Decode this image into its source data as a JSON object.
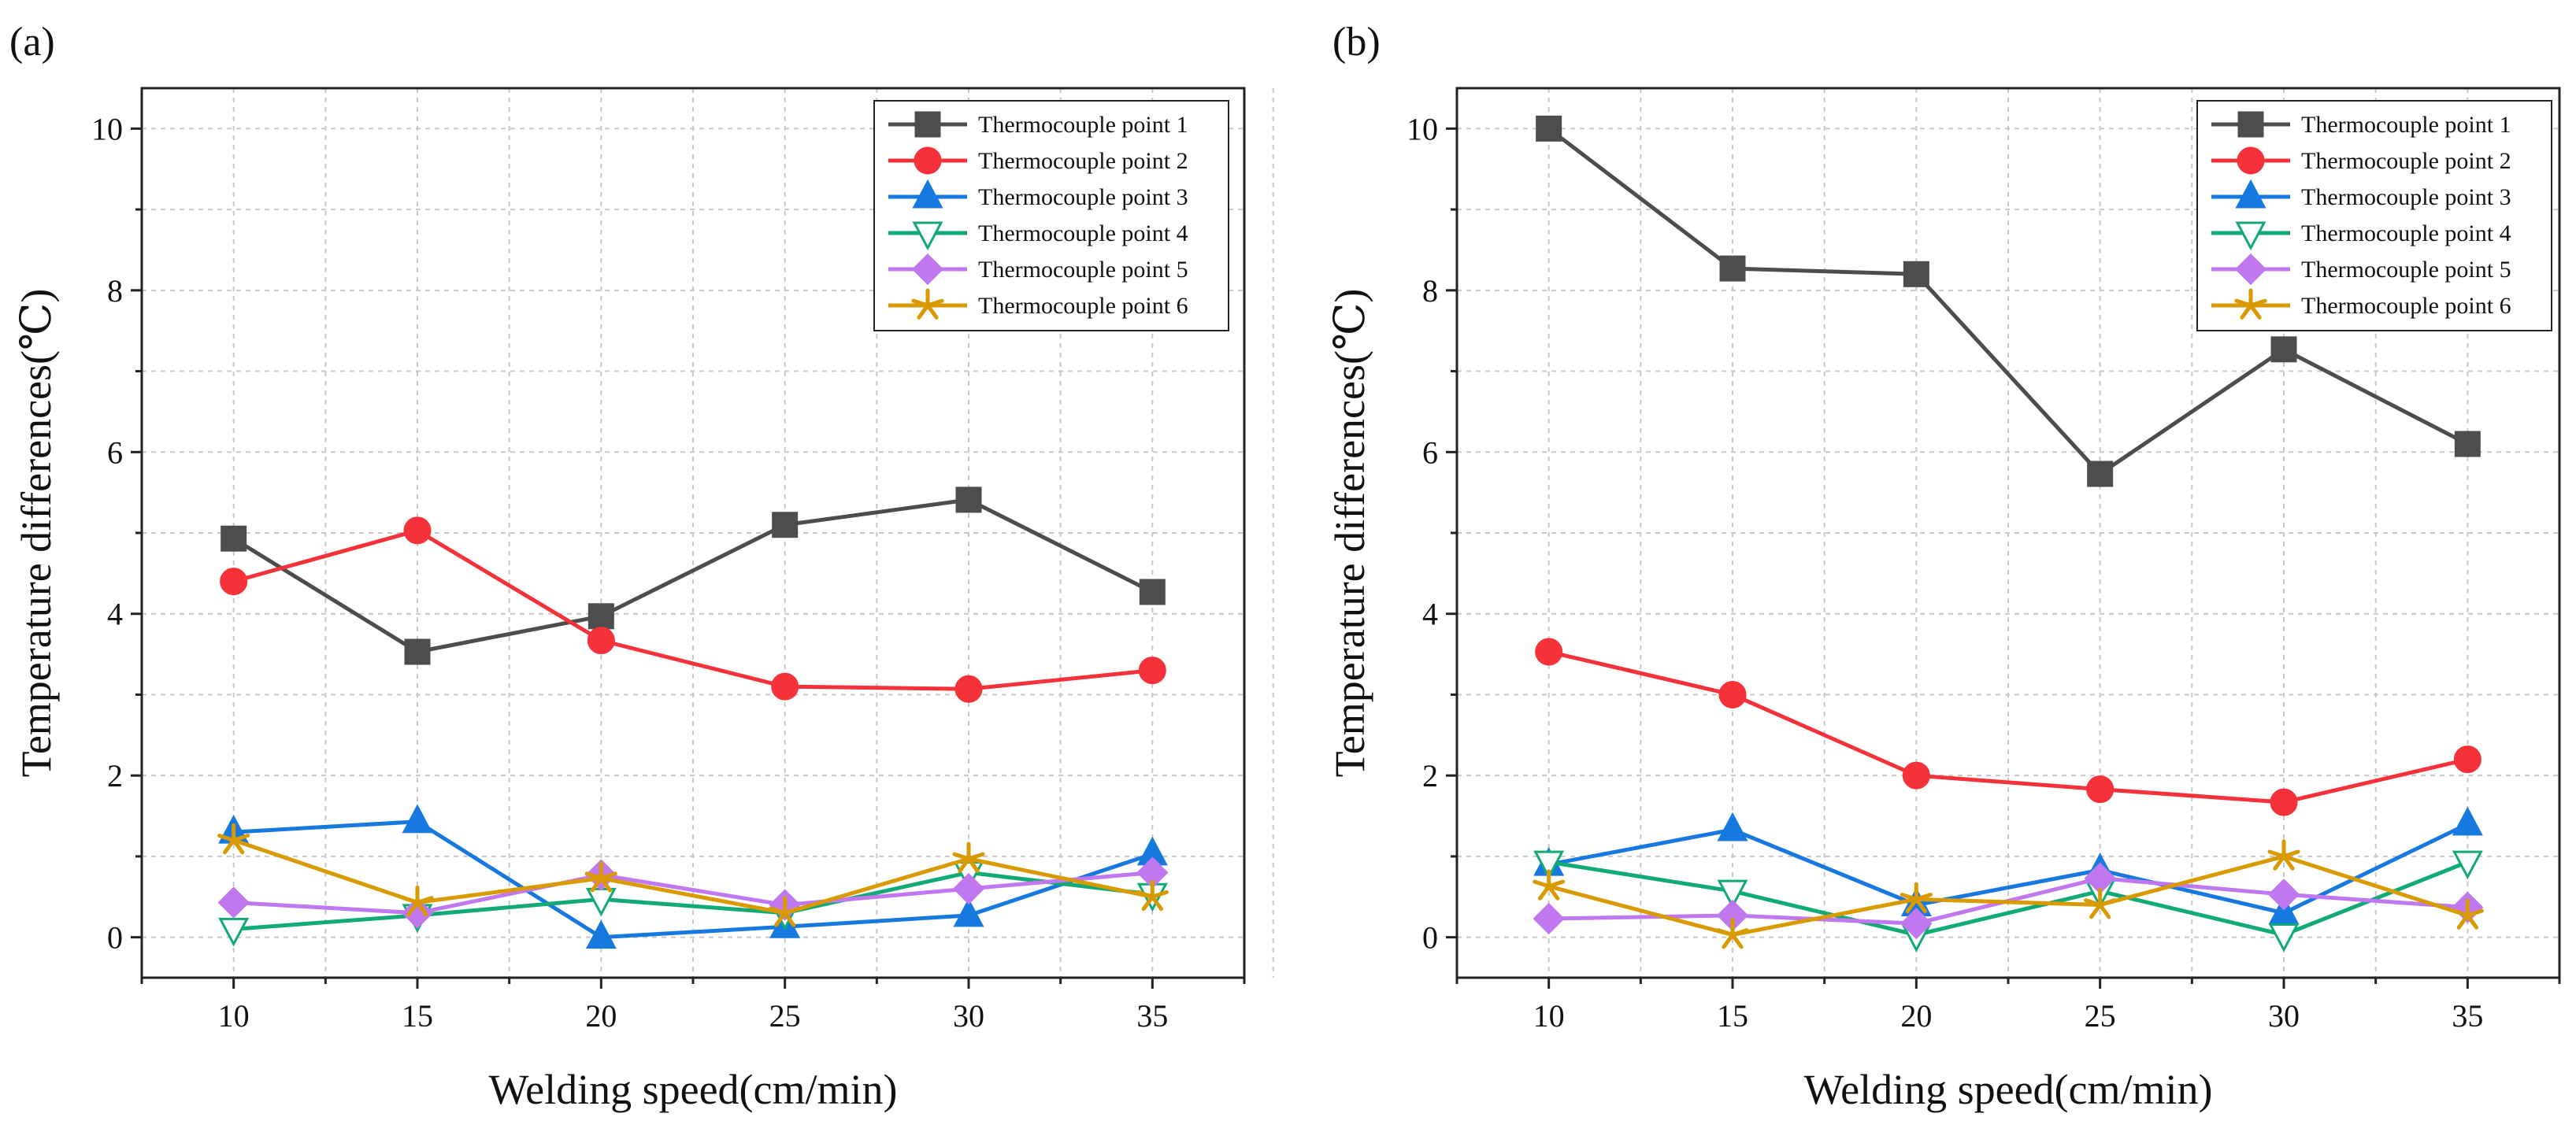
{
  "chart_data": [
    {
      "type": "line",
      "panel_label": "(a)",
      "xlabel": "Welding speed(cm/min)",
      "ylabel": "Temperature differences(℃)",
      "x": [
        10,
        15,
        20,
        25,
        30,
        35
      ],
      "xlim": [
        7.5,
        37.5
      ],
      "ylim": [
        -0.5,
        10.5
      ],
      "xticks": [
        10,
        15,
        20,
        25,
        30,
        35
      ],
      "yticks": [
        0,
        2,
        4,
        6,
        8,
        10
      ],
      "grid": true,
      "legend_position": "top-right",
      "series": [
        {
          "name": "Thermocouple point 1",
          "color": "#4d4d4d",
          "marker": "square",
          "values": [
            4.93,
            3.53,
            3.97,
            5.1,
            5.41,
            4.27
          ]
        },
        {
          "name": "Thermocouple point 2",
          "color": "#f5323a",
          "marker": "circle",
          "values": [
            4.4,
            5.03,
            3.67,
            3.1,
            3.07,
            3.3
          ]
        },
        {
          "name": "Thermocouple point 3",
          "color": "#1778e0",
          "marker": "triangle-up",
          "values": [
            1.3,
            1.43,
            0.0,
            0.13,
            0.27,
            1.03
          ]
        },
        {
          "name": "Thermocouple point 4",
          "color": "#11aa77",
          "marker": "triangle-down-open",
          "values": [
            0.1,
            0.27,
            0.47,
            0.3,
            0.8,
            0.53
          ]
        },
        {
          "name": "Thermocouple point 5",
          "color": "#c077f0",
          "marker": "diamond",
          "values": [
            0.43,
            0.3,
            0.77,
            0.4,
            0.6,
            0.8
          ]
        },
        {
          "name": "Thermocouple point 6",
          "color": "#d99a00",
          "marker": "star",
          "values": [
            1.2,
            0.43,
            0.73,
            0.3,
            0.97,
            0.5
          ]
        }
      ]
    },
    {
      "type": "line",
      "panel_label": "(b)",
      "xlabel": "Welding speed(cm/min)",
      "ylabel": "Temperature differences(℃)",
      "x": [
        10,
        15,
        20,
        25,
        30,
        35
      ],
      "xlim": [
        7.5,
        37.5
      ],
      "ylim": [
        -0.5,
        10.5
      ],
      "xticks": [
        10,
        15,
        20,
        25,
        30,
        35
      ],
      "yticks": [
        0,
        2,
        4,
        6,
        8,
        10
      ],
      "grid": true,
      "legend_position": "top-right",
      "series": [
        {
          "name": "Thermocouple point 1",
          "color": "#4d4d4d",
          "marker": "square",
          "values": [
            10.0,
            8.27,
            8.2,
            5.73,
            7.27,
            6.1
          ]
        },
        {
          "name": "Thermocouple point 2",
          "color": "#f5323a",
          "marker": "circle",
          "values": [
            3.53,
            3.0,
            2.0,
            1.83,
            1.67,
            2.2
          ]
        },
        {
          "name": "Thermocouple point 3",
          "color": "#1778e0",
          "marker": "triangle-up",
          "values": [
            0.9,
            1.33,
            0.4,
            0.83,
            0.3,
            1.4
          ]
        },
        {
          "name": "Thermocouple point 4",
          "color": "#11aa77",
          "marker": "triangle-down-open",
          "values": [
            0.93,
            0.57,
            0.03,
            0.57,
            0.03,
            0.93
          ]
        },
        {
          "name": "Thermocouple point 5",
          "color": "#c077f0",
          "marker": "diamond",
          "values": [
            0.23,
            0.27,
            0.17,
            0.73,
            0.53,
            0.37
          ]
        },
        {
          "name": "Thermocouple point 6",
          "color": "#d99a00",
          "marker": "star",
          "values": [
            0.63,
            0.03,
            0.47,
            0.4,
            1.0,
            0.27
          ]
        }
      ]
    }
  ]
}
